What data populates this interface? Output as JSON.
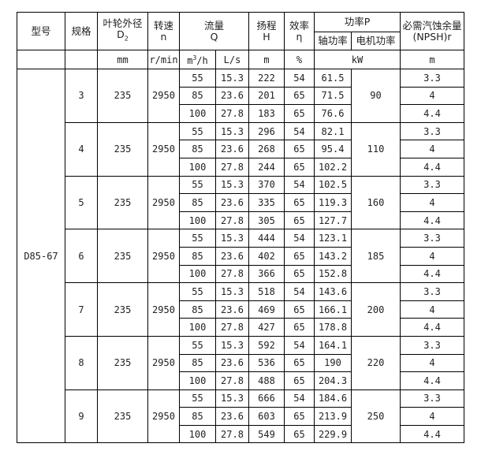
{
  "header": {
    "model": "型号",
    "spec": "规格",
    "impeller_dia": "叶轮外径",
    "impeller_sym": "D",
    "impeller_sub": "2",
    "speed": "转速",
    "speed_sym": "n",
    "flow": "流量",
    "flow_sym": "Q",
    "head": "扬程",
    "head_sym": "H",
    "eff": "效率",
    "eff_sym": "η",
    "power": "功率P",
    "shaft_power": "轴功率",
    "motor_power": "电机功率",
    "npsh": "必需汽蚀余量",
    "npsh_sym": "(NPSH)r"
  },
  "units": {
    "mm": "mm",
    "rpm": "r/min",
    "m3h_base": "m",
    "m3h_sup": "3",
    "m3h_tail": "/h",
    "ls": "L/s",
    "m": "m",
    "pct": "%",
    "kw": "kW",
    "npsh": "m"
  },
  "model": "D85-67",
  "groups": [
    {
      "spec": "3",
      "d2": "235",
      "n": "2950",
      "motor": "90",
      "rows": [
        [
          "55",
          "15.3",
          "222",
          "54",
          "61.5",
          "3.3"
        ],
        [
          "85",
          "23.6",
          "201",
          "65",
          "71.5",
          "4"
        ],
        [
          "100",
          "27.8",
          "183",
          "65",
          "76.6",
          "4.4"
        ]
      ]
    },
    {
      "spec": "4",
      "d2": "235",
      "n": "2950",
      "motor": "110",
      "rows": [
        [
          "55",
          "15.3",
          "296",
          "54",
          "82.1",
          "3.3"
        ],
        [
          "85",
          "23.6",
          "268",
          "65",
          "95.4",
          "4"
        ],
        [
          "100",
          "27.8",
          "244",
          "65",
          "102.2",
          "4.4"
        ]
      ]
    },
    {
      "spec": "5",
      "d2": "235",
      "n": "2950",
      "motor": "160",
      "rows": [
        [
          "55",
          "15.3",
          "370",
          "54",
          "102.5",
          "3.3"
        ],
        [
          "85",
          "23.6",
          "335",
          "65",
          "119.3",
          "4"
        ],
        [
          "100",
          "27.8",
          "305",
          "65",
          "127.7",
          "4.4"
        ]
      ]
    },
    {
      "spec": "6",
      "d2": "235",
      "n": "2950",
      "motor": "185",
      "rows": [
        [
          "55",
          "15.3",
          "444",
          "54",
          "123.1",
          "3.3"
        ],
        [
          "85",
          "23.6",
          "402",
          "65",
          "143.2",
          "4"
        ],
        [
          "100",
          "27.8",
          "366",
          "65",
          "152.8",
          "4.4"
        ]
      ]
    },
    {
      "spec": "7",
      "d2": "235",
      "n": "2950",
      "motor": "200",
      "rows": [
        [
          "55",
          "15.3",
          "518",
          "54",
          "143.6",
          "3.3"
        ],
        [
          "85",
          "23.6",
          "469",
          "65",
          "166.1",
          "4"
        ],
        [
          "100",
          "27.8",
          "427",
          "65",
          "178.8",
          "4.4"
        ]
      ]
    },
    {
      "spec": "8",
      "d2": "235",
      "n": "2950",
      "motor": "220",
      "rows": [
        [
          "55",
          "15.3",
          "592",
          "54",
          "164.1",
          "3.3"
        ],
        [
          "85",
          "23.6",
          "536",
          "65",
          "190",
          "4"
        ],
        [
          "100",
          "27.8",
          "488",
          "65",
          "204.3",
          "4.4"
        ]
      ]
    },
    {
      "spec": "9",
      "d2": "235",
      "n": "2950",
      "motor": "250",
      "rows": [
        [
          "55",
          "15.3",
          "666",
          "54",
          "184.6",
          "3.3"
        ],
        [
          "85",
          "23.6",
          "603",
          "65",
          "213.9",
          "4"
        ],
        [
          "100",
          "27.8",
          "549",
          "65",
          "229.9",
          "4.4"
        ]
      ]
    }
  ]
}
